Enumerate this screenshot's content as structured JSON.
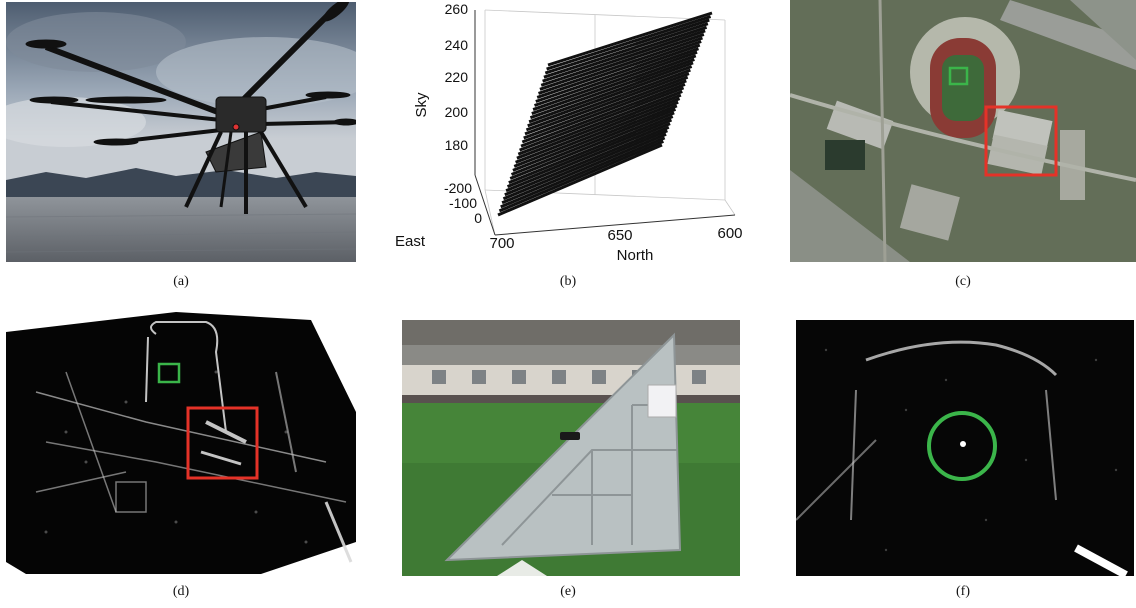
{
  "figure": {
    "panels": [
      {
        "id": "a",
        "caption": "(a)",
        "content": "UAV platform photo"
      },
      {
        "id": "b",
        "caption": "(b)",
        "content": "3D flight trajectory plot"
      },
      {
        "id": "c",
        "caption": "(c)",
        "content": "Optical satellite image"
      },
      {
        "id": "d",
        "caption": "(d)",
        "content": "SAR image of scene"
      },
      {
        "id": "e",
        "caption": "(e)",
        "content": "Corner reflector on field"
      },
      {
        "id": "f",
        "caption": "(f)",
        "content": "SAR zoom on reflector"
      }
    ],
    "markers": {
      "green_box": "#3bb54a",
      "red_box": "#e53228",
      "green_circle": "#3bb54a"
    }
  },
  "chart_data": {
    "type": "line",
    "title": "",
    "xlabel": "North",
    "ylabel": "Sky",
    "zlabel": "East",
    "north_ticks": [
      "700",
      "650",
      "600"
    ],
    "sky_ticks": [
      "180",
      "200",
      "220",
      "240",
      "260"
    ],
    "east_ticks": [
      "-200",
      "-100",
      "0"
    ],
    "north_range": [
      700,
      600
    ],
    "sky_range": [
      170,
      260
    ],
    "series": [
      {
        "north_start": 700,
        "north_end": 600,
        "sky_start": 165,
        "sky_end": 258
      }
    ],
    "track_count": 38
  }
}
